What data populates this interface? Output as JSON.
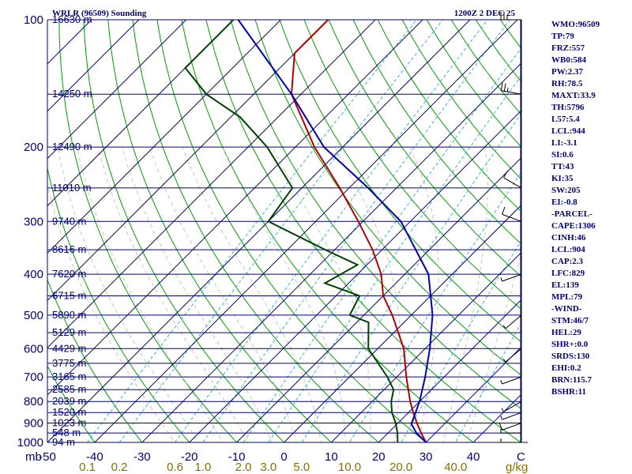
{
  "header": {
    "station_title": "WRLR (96509) Sounding",
    "time": "1200Z  2 DEC 25"
  },
  "units": {
    "pressure": "mb",
    "temp_degC": "C",
    "mixing_ratio": "g/kg"
  },
  "indices": [
    "WMO:96509",
    "TP:79",
    "FRZ:557",
    "WB0:584",
    "PW:2.37",
    "RH:78.5",
    "MAXT:33.9",
    "TH:5796",
    "L57:5.4",
    "LCL:944",
    "LI:-3.1",
    "SI:0.6",
    "TT:43",
    "KI:35",
    "SW:205",
    "EI:-0.8",
    "-PARCEL-",
    "CAPE:1306",
    "CINH:46",
    "LCL:904",
    "CAP:2.3",
    "LFC:829",
    "EL:139",
    "MPL:79",
    "-WIND-",
    "STM:46/7",
    "HEL:29",
    "SHR+:0.0",
    "SRDS:130",
    "EHI:0.2",
    "BRN:115.7",
    "BSHR:11"
  ],
  "colors": {
    "axis": "#000080",
    "isobar": "#000080",
    "isotherm": "#000080",
    "dry_adiabat": "#00a000",
    "moist_adiabat": "#c8c8b4",
    "mixing_ratio": "#40b0e0",
    "temperature": "#b40000",
    "dewpoint": "#004000",
    "parcel": "#0000b4",
    "wind": "#000000"
  },
  "chart_data": {
    "type": "skew-t",
    "ylim": [
      1000,
      100
    ],
    "xlim": [
      -50,
      50
    ],
    "pressure_ticks": [
      1000,
      900,
      800,
      700,
      600,
      500,
      400,
      300,
      200,
      100
    ],
    "temp_ticks": [
      -50,
      -40,
      -30,
      -20,
      -10,
      0,
      10,
      20,
      30,
      40
    ],
    "mixing_ratio_lines": [
      0.1,
      0.2,
      0.6,
      1.0,
      2.0,
      3.0,
      5.0,
      10.0,
      20.0,
      40.0
    ],
    "mixing_ratio_labels": [
      "0.1",
      "0.2",
      "0.6",
      "1.0",
      "2.0",
      "3.0",
      "5.0",
      "10.0",
      "20.0",
      "40.0"
    ],
    "height_levels": [
      {
        "p": 100,
        "label": "16630 m"
      },
      {
        "p": 150,
        "label": "14250 m"
      },
      {
        "p": 200,
        "label": "12490 m"
      },
      {
        "p": 250,
        "label": "11010 m"
      },
      {
        "p": 300,
        "label": "9740 m"
      },
      {
        "p": 350,
        "label": "8616 m"
      },
      {
        "p": 400,
        "label": "7620 m"
      },
      {
        "p": 450,
        "label": "6715 m"
      },
      {
        "p": 500,
        "label": "5890 m"
      },
      {
        "p": 550,
        "label": "5129 m"
      },
      {
        "p": 600,
        "label": "4429 m"
      },
      {
        "p": 650,
        "label": "3775 m"
      },
      {
        "p": 700,
        "label": "3165 m"
      },
      {
        "p": 750,
        "label": "2585 m"
      },
      {
        "p": 800,
        "label": "2039 m"
      },
      {
        "p": 850,
        "label": "1520 m"
      },
      {
        "p": 900,
        "label": "1023 m"
      },
      {
        "p": 950,
        "label": "548 m"
      },
      {
        "p": 1000,
        "label": "94 m"
      }
    ],
    "series": [
      {
        "name": "temperature",
        "points": [
          {
            "p": 1009,
            "t": 32.0
          },
          {
            "p": 1000,
            "t": 30.0
          },
          {
            "p": 950,
            "t": 27.0
          },
          {
            "p": 900,
            "t": 24.0
          },
          {
            "p": 850,
            "t": 21.0
          },
          {
            "p": 800,
            "t": 18.0
          },
          {
            "p": 700,
            "t": 12.0
          },
          {
            "p": 600,
            "t": 5.5
          },
          {
            "p": 500,
            "t": -4.0
          },
          {
            "p": 450,
            "t": -10.0
          },
          {
            "p": 400,
            "t": -15.0
          },
          {
            "p": 350,
            "t": -22.0
          },
          {
            "p": 300,
            "t": -31.0
          },
          {
            "p": 250,
            "t": -42.0
          },
          {
            "p": 200,
            "t": -56.0
          },
          {
            "p": 150,
            "t": -72.0
          },
          {
            "p": 120,
            "t": -80.0
          },
          {
            "p": 100,
            "t": -80.0
          }
        ]
      },
      {
        "name": "dewpoint",
        "points": [
          {
            "p": 1009,
            "t": 24.0
          },
          {
            "p": 1000,
            "t": 24.0
          },
          {
            "p": 950,
            "t": 22.0
          },
          {
            "p": 900,
            "t": 19.5
          },
          {
            "p": 850,
            "t": 16.5
          },
          {
            "p": 800,
            "t": 14.0
          },
          {
            "p": 750,
            "t": 12.0
          },
          {
            "p": 700,
            "t": 8.0
          },
          {
            "p": 600,
            "t": -2.0
          },
          {
            "p": 520,
            "t": -7.5
          },
          {
            "p": 500,
            "t": -13.0
          },
          {
            "p": 450,
            "t": -15.0
          },
          {
            "p": 420,
            "t": -25.0
          },
          {
            "p": 380,
            "t": -22.0
          },
          {
            "p": 350,
            "t": -32.0
          },
          {
            "p": 300,
            "t": -50.0
          },
          {
            "p": 250,
            "t": -52.0
          },
          {
            "p": 200,
            "t": -66.0
          },
          {
            "p": 170,
            "t": -78.0
          },
          {
            "p": 150,
            "t": -90.0
          },
          {
            "p": 130,
            "t": -100.0
          },
          {
            "p": 100,
            "t": -100.0
          }
        ]
      },
      {
        "name": "parcel",
        "points": [
          {
            "p": 1009,
            "t": 31.0
          },
          {
            "p": 1000,
            "t": 30.0
          },
          {
            "p": 950,
            "t": 26.0
          },
          {
            "p": 904,
            "t": 23.0
          },
          {
            "p": 850,
            "t": 21.5
          },
          {
            "p": 800,
            "t": 20.0
          },
          {
            "p": 700,
            "t": 16.0
          },
          {
            "p": 600,
            "t": 11.0
          },
          {
            "p": 500,
            "t": 4.5
          },
          {
            "p": 400,
            "t": -5.0
          },
          {
            "p": 300,
            "t": -22.0
          },
          {
            "p": 250,
            "t": -36.0
          },
          {
            "p": 200,
            "t": -54.0
          },
          {
            "p": 150,
            "t": -72.0
          },
          {
            "p": 100,
            "t": -99.0
          }
        ]
      }
    ],
    "wind": {
      "note": "wind barbs plotted along right margin",
      "levels": [
        {
          "p": 1000,
          "dir": 270,
          "spd": 5
        },
        {
          "p": 950,
          "dir": 270,
          "spd": 5
        },
        {
          "p": 900,
          "dir": 250,
          "spd": 10
        },
        {
          "p": 850,
          "dir": 250,
          "spd": 5
        },
        {
          "p": 800,
          "dir": 240,
          "spd": 5
        },
        {
          "p": 700,
          "dir": 250,
          "spd": 5
        },
        {
          "p": 600,
          "dir": 230,
          "spd": 5
        },
        {
          "p": 500,
          "dir": 230,
          "spd": 5
        },
        {
          "p": 400,
          "dir": 250,
          "spd": 5
        },
        {
          "p": 300,
          "dir": 290,
          "spd": 10
        },
        {
          "p": 250,
          "dir": 300,
          "spd": 10
        },
        {
          "p": 150,
          "dir": 280,
          "spd": 25
        },
        {
          "p": 100,
          "dir": 270,
          "spd": 25
        }
      ]
    }
  }
}
